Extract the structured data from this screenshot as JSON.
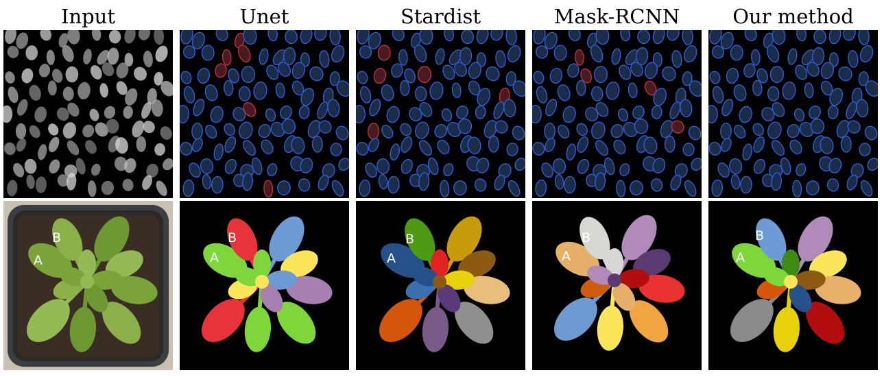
{
  "columns": [
    {
      "key": "input",
      "title": "Input"
    },
    {
      "key": "unet",
      "title": "Unet"
    },
    {
      "key": "stardist",
      "title": "Stardist"
    },
    {
      "key": "maskrcnn",
      "title": "Mask-RCNN"
    },
    {
      "key": "ours",
      "title": "Our method"
    }
  ],
  "leaf_labels": {
    "a": "A",
    "b": "B"
  },
  "colors": {
    "background": "#000000",
    "nucleus_outline_correct": "#2f5fd0",
    "nucleus_outline_error": "#c0303a",
    "nucleus_fill": "#1a2c4a"
  }
}
